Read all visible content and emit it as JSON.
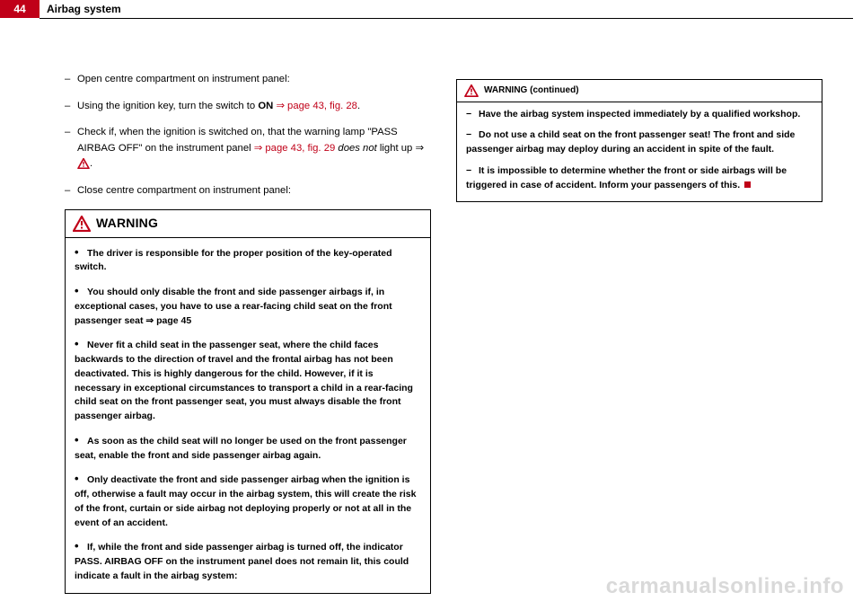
{
  "header": {
    "page_number": "44",
    "section": "Airbag system",
    "accent_color": "#c00018"
  },
  "left_column": {
    "items": [
      {
        "text_parts": [
          {
            "t": "Open centre compartment on instrument panel:"
          }
        ]
      },
      {
        "text_parts": [
          {
            "t": "Using the ignition key, turn the switch to "
          },
          {
            "t": "ON",
            "b": true
          },
          {
            "t": " "
          },
          {
            "t": "⇒ page 43, fig. 28",
            "ref": true
          },
          {
            "t": "."
          }
        ]
      },
      {
        "text_parts": [
          {
            "t": "Check if, when the ignition is switched on, that the warning lamp \"PASS AIRBAG OFF\" on the instrument panel  "
          },
          {
            "t": "⇒ page 43, fig. 29",
            "ref": true
          },
          {
            "t": " "
          },
          {
            "t": "does not",
            "i": true
          },
          {
            "t": " light up ⇒ "
          },
          {
            "tri": true
          },
          {
            "t": "."
          }
        ]
      },
      {
        "text_parts": [
          {
            "t": "Close centre compartment on instrument panel:"
          }
        ]
      }
    ],
    "warning": {
      "title": "WARNING",
      "items": [
        "The driver is responsible for the proper position of the key-operated switch.",
        "You should only disable the front and side passenger airbags if, in exceptional cases, you have to use a rear-facing child seat on the front passenger seat ⇒ page 45",
        "Never fit a child seat in the passenger seat, where the child faces backwards to the direction of travel and the frontal airbag has not been deactivated. This is highly dangerous for the child. However, if it is necessary in exceptional circumstances to transport a child in a rear-facing child seat on the front passenger seat, you must always disable the front passenger airbag.",
        "As soon as the child seat will no longer be used on the front passenger seat, enable the front and side passenger airbag again.",
        "Only deactivate the front and side passenger airbag when the ignition is off, otherwise a fault may occur in the airbag system, this will create the risk of the front, curtain or side airbag not deploying properly or not at all in the event of an accident.",
        "If, while the front and side passenger airbag is turned off, the indicator PASS. AIRBAG OFF on the instrument panel does not remain lit, this could indicate a fault in the airbag system:"
      ]
    }
  },
  "right_column": {
    "warning": {
      "title": "WARNING (continued)",
      "items": [
        "Have the airbag system inspected immediately by a qualified workshop.",
        "Do not use a child seat on the front passenger seat! The front and side passenger airbag may deploy during an accident in spite of the fault.",
        "It is impossible to determine whether the front or side airbags will be triggered in case of accident. Inform your passengers of this."
      ]
    }
  },
  "watermark": "carmanualsonline.info",
  "icons": {
    "triangle_stroke": "#c00018"
  }
}
